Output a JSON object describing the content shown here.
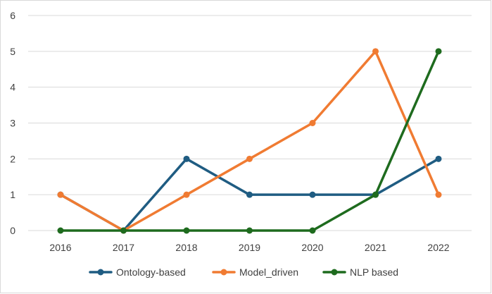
{
  "chart_data": {
    "type": "line",
    "title": "",
    "xlabel": "",
    "ylabel": "",
    "categories": [
      "2016",
      "2017",
      "2018",
      "2019",
      "2020",
      "2021",
      "2022"
    ],
    "ylim": [
      0,
      6
    ],
    "yticks": [
      0,
      1,
      2,
      3,
      4,
      5,
      6
    ],
    "grid": true,
    "legend_position": "bottom",
    "series": [
      {
        "name": "Ontology-based",
        "color": "#1f5c82",
        "values": [
          1,
          0,
          2,
          1,
          1,
          1,
          2
        ]
      },
      {
        "name": "Model_driven",
        "color": "#f07b32",
        "values": [
          1,
          0,
          1,
          2,
          3,
          5,
          1
        ]
      },
      {
        "name": "NLP based",
        "color": "#1e6b1e",
        "values": [
          0,
          0,
          0,
          0,
          0,
          1,
          5
        ]
      }
    ],
    "gridline_color": "#d9d9d9",
    "text_color": "#404040"
  }
}
